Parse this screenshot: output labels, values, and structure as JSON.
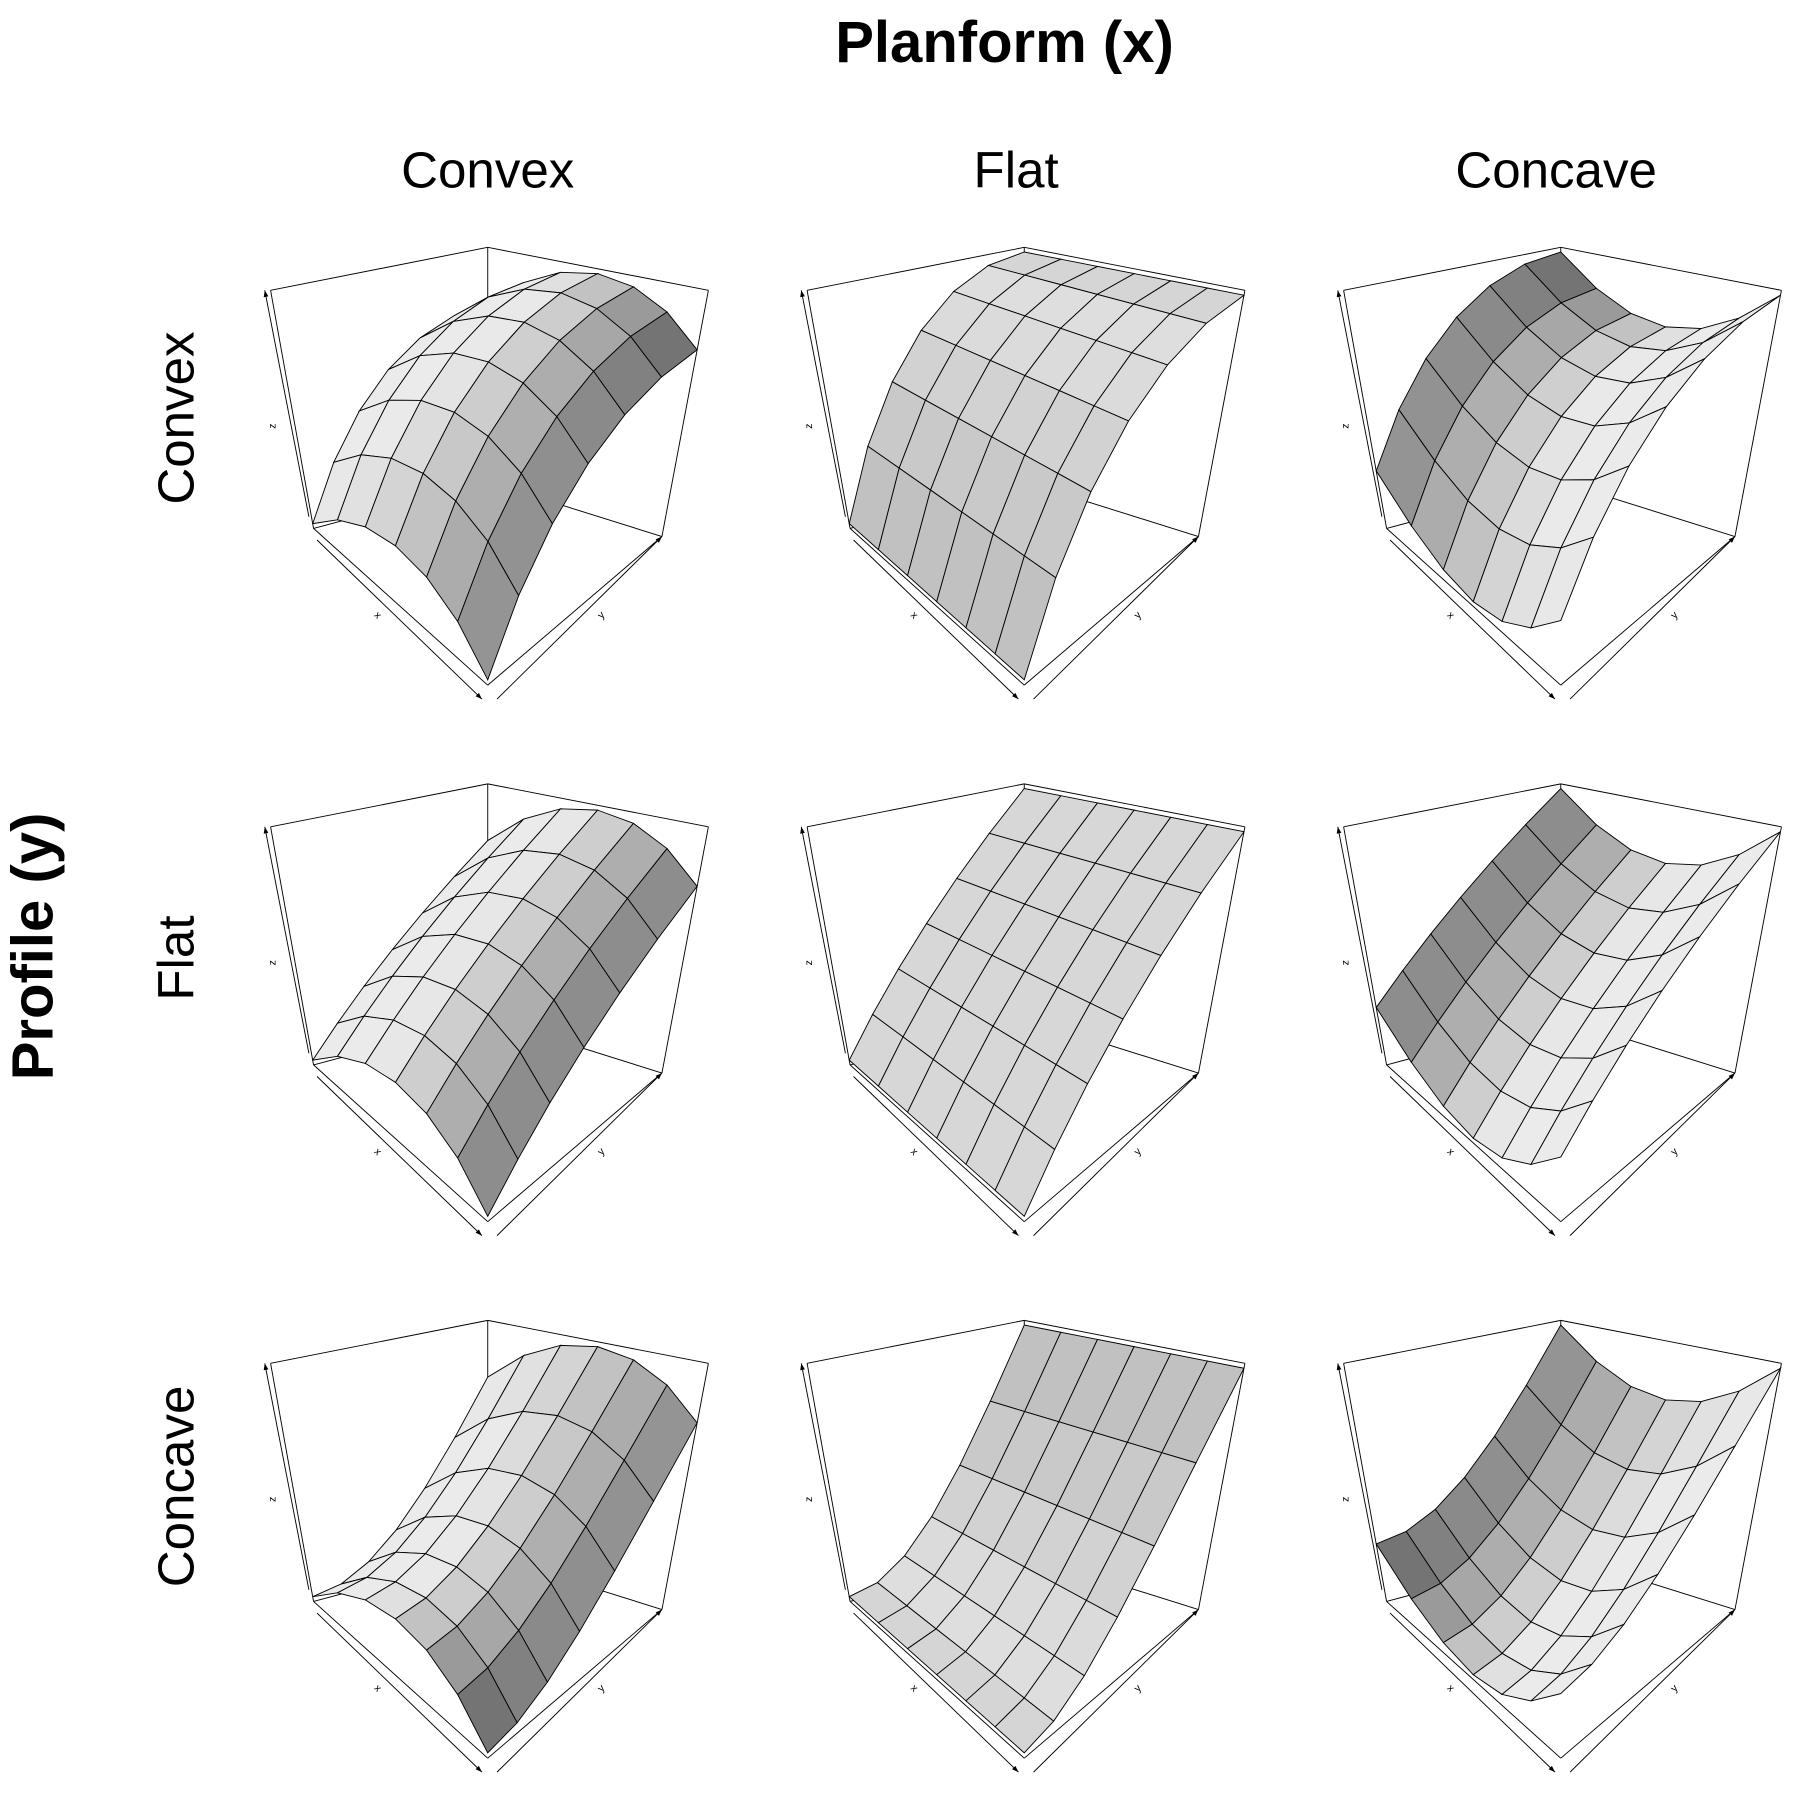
{
  "title": "Planform (x)",
  "row_title": "Profile (y)",
  "columns": [
    "Convex",
    "Flat",
    "Concave"
  ],
  "rows": [
    "Convex",
    "Flat",
    "Concave"
  ],
  "axis_labels": {
    "x": "x",
    "y": "y",
    "z": "z"
  }
}
